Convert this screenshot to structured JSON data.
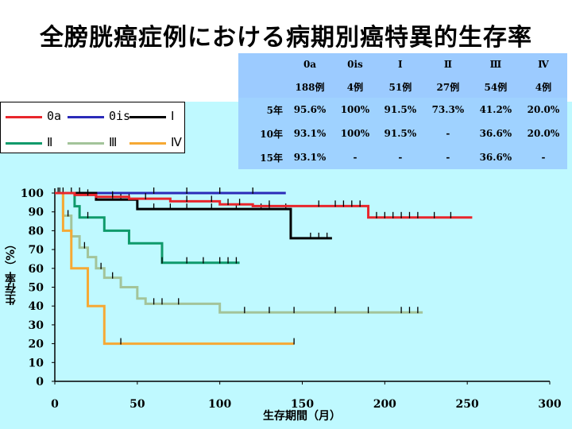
{
  "title": "全膀胱癌症例における病期別癌特異的生存率",
  "table": {
    "header": [
      "0a",
      "0is",
      "Ⅰ",
      "Ⅱ",
      "Ⅲ",
      "Ⅳ"
    ],
    "counts": [
      "188例",
      "4例",
      "51例",
      "27例",
      "54例",
      "4例"
    ],
    "rows": [
      {
        "label": "5年",
        "values": [
          "95.6%",
          "100%",
          "91.5%",
          "73.3%",
          "41.2%",
          "20.0%"
        ]
      },
      {
        "label": "10年",
        "values": [
          "93.1%",
          "100%",
          "91.5%",
          "-",
          "36.6%",
          "20.0%"
        ]
      },
      {
        "label": "15年",
        "values": [
          "93.1%",
          "-",
          "-",
          "-",
          "36.6%",
          "-"
        ]
      }
    ]
  },
  "colors": {
    "0a": "#e8262c",
    "0is": "#2b2bb8",
    "I": "#000000",
    "II": "#0f9a6b",
    "III": "#a3c49a",
    "IV": "#f6a934",
    "panel": "#bff9ff",
    "table_header": "#9ccbff",
    "table_body": "#9fd2ff"
  },
  "chart_data": {
    "type": "line",
    "xlabel": "生存期間（月）",
    "ylabel": "生存率（%）",
    "xlim": [
      0,
      300
    ],
    "ylim": [
      0,
      100
    ],
    "xticks": [
      0,
      50,
      100,
      150,
      200,
      250,
      300
    ],
    "yticks": [
      0,
      10,
      20,
      30,
      40,
      50,
      60,
      70,
      80,
      90,
      100
    ],
    "legend_position": "top-left",
    "series": [
      {
        "name": "0a",
        "color": "#e8262c",
        "x": [
          0,
          12,
          25,
          45,
          70,
          100,
          120,
          150,
          190,
          253
        ],
        "y": [
          100,
          99,
          98,
          97,
          95.6,
          94,
          93.1,
          93.1,
          87,
          87
        ],
        "censor": [
          20,
          35,
          55,
          80,
          95,
          105,
          112,
          130,
          160,
          170,
          175,
          180,
          185,
          195,
          200,
          205,
          210,
          215,
          220,
          230,
          240
        ]
      },
      {
        "name": "0is",
        "color": "#2b2bb8",
        "x": [
          0,
          140
        ],
        "y": [
          100,
          100
        ],
        "censor": [
          60,
          80,
          100,
          120
        ]
      },
      {
        "name": "Ⅰ",
        "color": "#000000",
        "x": [
          0,
          25,
          50,
          143,
          168
        ],
        "y": [
          100,
          96.5,
          91.5,
          76,
          76
        ],
        "censor": [
          5,
          15,
          35,
          40,
          45,
          60,
          70,
          80,
          95,
          110,
          125,
          130,
          140,
          155,
          160,
          165
        ]
      },
      {
        "name": "Ⅱ",
        "color": "#0f9a6b",
        "x": [
          0,
          12,
          15,
          30,
          45,
          62,
          65,
          112
        ],
        "y": [
          100,
          93,
          87,
          80,
          73.3,
          73.3,
          63,
          63
        ],
        "censor": [
          10,
          20,
          65,
          80,
          90,
          100,
          105,
          110
        ]
      },
      {
        "name": "Ⅲ",
        "color": "#a3c49a",
        "x": [
          0,
          5,
          10,
          15,
          20,
          25,
          30,
          40,
          50,
          55,
          96,
          100,
          223
        ],
        "y": [
          100,
          88,
          77,
          71,
          66,
          60,
          55,
          50,
          44,
          41.2,
          41.2,
          36.6,
          36.6
        ],
        "censor": [
          3,
          8,
          18,
          28,
          35,
          60,
          65,
          75,
          115,
          130,
          145,
          170,
          190,
          210,
          215,
          220
        ]
      },
      {
        "name": "Ⅳ",
        "color": "#f6a934",
        "x": [
          0,
          5,
          10,
          20,
          30,
          145
        ],
        "y": [
          100,
          80,
          60,
          40,
          20,
          20
        ],
        "censor": [
          2,
          40,
          145
        ]
      }
    ]
  }
}
